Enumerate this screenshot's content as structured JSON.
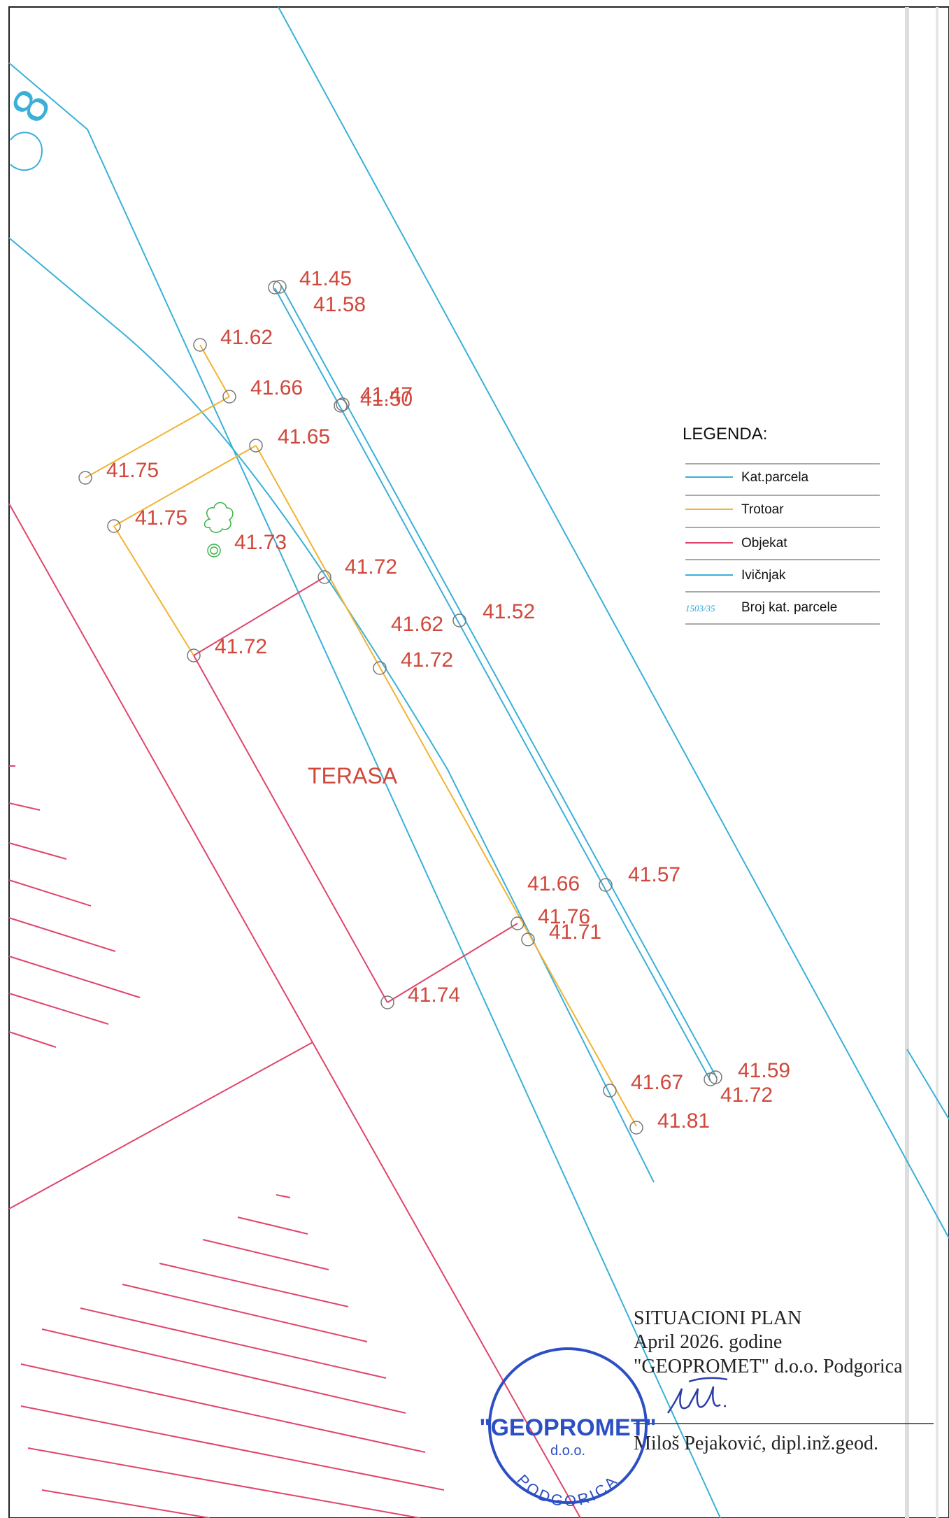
{
  "colors": {
    "kat_parcela": "#3ab0d8",
    "trotoar": "#f2b332",
    "objekat": "#e0456b",
    "ivicnjak": "#3ab0d8",
    "elevation_text": "#d0483c",
    "stamp": "#2c4fc4",
    "vegetation": "#3cb44b"
  },
  "map": {
    "parcel_number": "8",
    "terasa_label": "TERASA",
    "elevations": [
      "41.45",
      "41.58",
      "41.62",
      "41.66",
      "41.47",
      "41.50",
      "41.65",
      "41.75",
      "41.75",
      "41.73",
      "41.72",
      "41.62",
      "41.52",
      "41.72",
      "41.72",
      "41.66",
      "41.57",
      "41.76",
      "41.71",
      "41.74",
      "41.67",
      "41.59",
      "41.72",
      "41.81"
    ]
  },
  "legend": {
    "title": "LEGENDA:",
    "items": [
      {
        "label": "Kat.parcela",
        "color": "#3ab0d8",
        "sample": ""
      },
      {
        "label": "Trotoar",
        "color": "#f2b332",
        "sample": ""
      },
      {
        "label": "Objekat",
        "color": "#e0456b",
        "sample": ""
      },
      {
        "label": "Ivičnjak",
        "color": "#3ab0d8",
        "sample": ""
      },
      {
        "label": "Broj kat. parcele",
        "color": "#3ab0d8",
        "sample": "1503/35"
      }
    ]
  },
  "title_block": {
    "line1": "SITUACIONI PLAN",
    "line2": "April 2026. godine",
    "line3": "\"GEOPROMET\" d.o.o. Podgorica",
    "signer": "Miloš Pejaković, dipl.inž.geod."
  },
  "stamp": {
    "name": "\"GEOPROMET\"",
    "sub": "d.o.o.",
    "city": "PODGORICA"
  }
}
